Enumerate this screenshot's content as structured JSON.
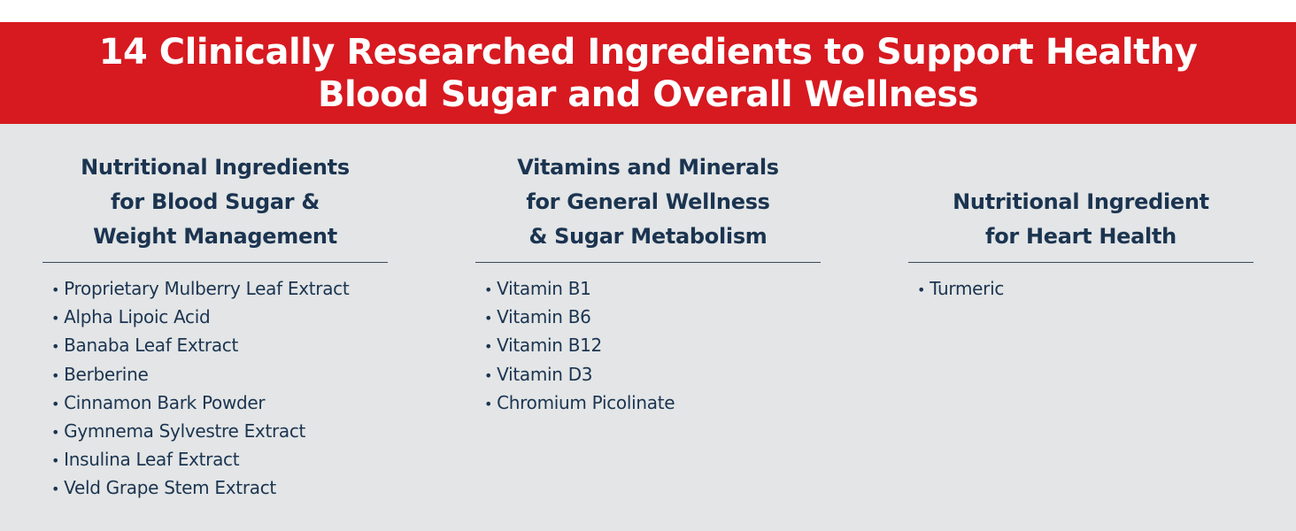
{
  "header": {
    "title_lines": [
      "14 Clinically Researched Ingredients to Support Healthy",
      "Blood Sugar and Overall Wellness"
    ]
  },
  "columns": [
    {
      "heading_lines": [
        "Nutritional Ingredients",
        "for Blood Sugar &",
        "Weight Management"
      ],
      "items": [
        "Proprietary Mulberry Leaf Extract",
        "Alpha Lipoic Acid",
        "Banaba Leaf Extract",
        "Berberine",
        "Cinnamon Bark Powder",
        "Gymnema Sylvestre Extract",
        "Insulina Leaf Extract",
        "Veld Grape Stem Extract"
      ]
    },
    {
      "heading_lines": [
        "Vitamins and Minerals",
        "for General Wellness",
        "& Sugar Metabolism"
      ],
      "items": [
        "Vitamin B1",
        "Vitamin B6",
        "Vitamin B12",
        "Vitamin D3",
        "Chromium Picolinate"
      ]
    },
    {
      "heading_lines": [
        "Nutritional Ingredient",
        "for Heart Health"
      ],
      "items": [
        "Turmeric"
      ]
    }
  ]
}
